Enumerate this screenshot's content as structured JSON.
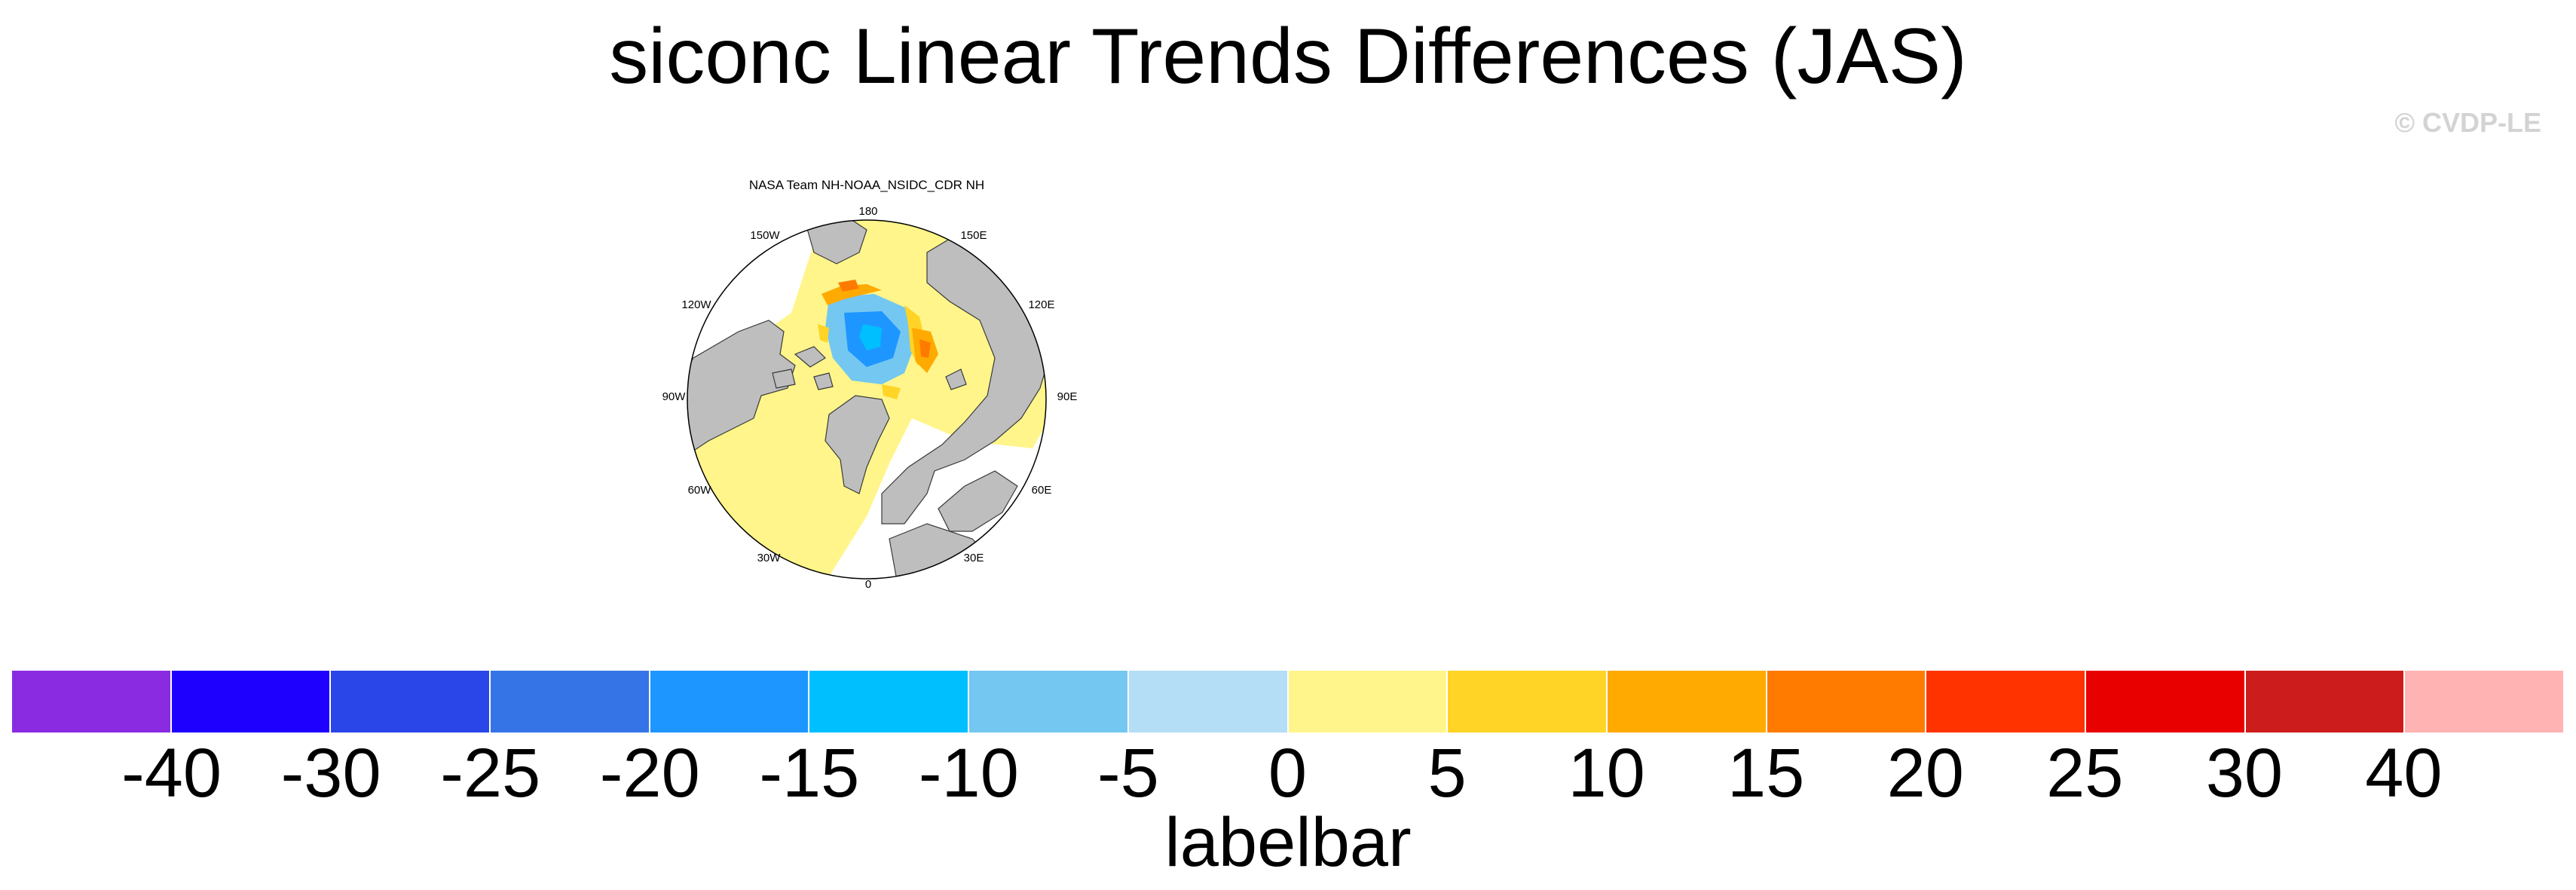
{
  "title": "siconc Linear Trends Differences (JAS)",
  "copyright": "© CVDP-LE",
  "panel": {
    "title": "NASA Team NH-NOAA_NSIDC_CDR NH",
    "projection": "north-polar-stereographic",
    "longitude_labels": [
      "180",
      "150E",
      "120E",
      "90E",
      "60E",
      "30E",
      "0",
      "30W",
      "60W",
      "90W",
      "120W",
      "150W"
    ],
    "land_color": "#bebebe",
    "ocean_color": "#ffffff"
  },
  "labelbar": {
    "title": "labelbar",
    "tick_labels": [
      "-40",
      "-30",
      "-25",
      "-20",
      "-15",
      "-10",
      "-5",
      "0",
      "5",
      "10",
      "15",
      "20",
      "25",
      "30",
      "40"
    ],
    "colors": [
      "#8a2be2",
      "#1e00ff",
      "#2a45e8",
      "#3574e6",
      "#1e96ff",
      "#00bfff",
      "#74c7f0",
      "#b3def5",
      "#fff58a",
      "#ffd426",
      "#ffaa00",
      "#ff7b00",
      "#ff3300",
      "#e80000",
      "#cc1c1c",
      "#ffb3b3"
    ]
  }
}
